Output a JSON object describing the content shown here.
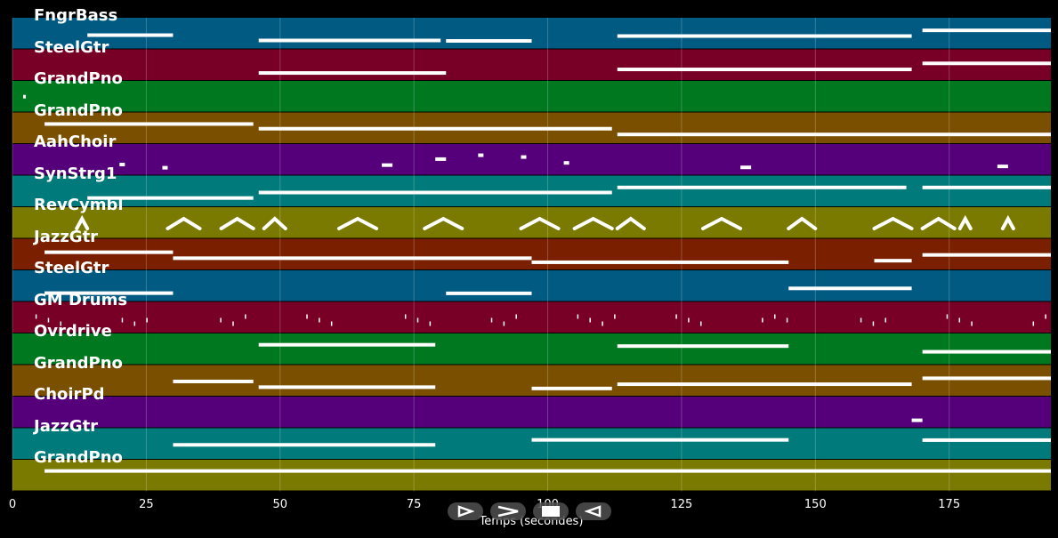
{
  "chart_data": {
    "type": "piano-roll",
    "xlabel": "Temps (secondes)",
    "xlim": [
      0,
      194
    ],
    "xticks": [
      0,
      25,
      50,
      75,
      100,
      125,
      150,
      175
    ],
    "tracks": [
      {
        "name": "FngrBass",
        "color": "#005a82",
        "segments": [
          [
            14,
            30
          ],
          [
            46,
            80
          ],
          [
            81,
            97
          ],
          [
            113,
            168
          ],
          [
            170,
            194
          ]
        ]
      },
      {
        "name": "SteelGtr",
        "color": "#780026",
        "segments": [
          [
            46,
            81
          ],
          [
            113,
            168
          ],
          [
            170,
            194
          ]
        ]
      },
      {
        "name": "GrandPno",
        "color": "#007820",
        "segments": [
          [
            2,
            2.5
          ]
        ]
      },
      {
        "name": "GrandPno",
        "color": "#7a5000",
        "segments": [
          [
            6,
            45
          ],
          [
            46,
            112
          ],
          [
            113,
            194
          ]
        ]
      },
      {
        "name": "AahChoir",
        "color": "#55007a",
        "segments": [
          [
            20,
            21
          ],
          [
            28,
            29
          ],
          [
            69,
            71
          ],
          [
            79,
            81
          ],
          [
            87,
            88
          ],
          [
            95,
            96
          ],
          [
            103,
            104
          ],
          [
            136,
            138
          ],
          [
            184,
            186
          ]
        ]
      },
      {
        "name": "SynStrg1",
        "color": "#007a7a",
        "segments": [
          [
            14,
            45
          ],
          [
            46,
            112
          ],
          [
            113,
            167
          ],
          [
            170,
            194
          ]
        ]
      },
      {
        "name": "RevCymbl",
        "color": "#7a7a00",
        "segments": [
          [
            12,
            14
          ],
          [
            29,
            35
          ],
          [
            39,
            45
          ],
          [
            47,
            51
          ],
          [
            61,
            68
          ],
          [
            77,
            84
          ],
          [
            95,
            102
          ],
          [
            105,
            112
          ],
          [
            113,
            118
          ],
          [
            129,
            136
          ],
          [
            145,
            150
          ],
          [
            161,
            168
          ],
          [
            170,
            176
          ],
          [
            177,
            179
          ],
          [
            185,
            187
          ]
        ]
      },
      {
        "name": "JazzGtr",
        "color": "#7a2000",
        "segments": [
          [
            6,
            30
          ],
          [
            30,
            97
          ],
          [
            97,
            145
          ],
          [
            161,
            168
          ],
          [
            170,
            194
          ]
        ]
      },
      {
        "name": "SteelGtr",
        "color": "#005a82",
        "segments": [
          [
            6,
            30
          ],
          [
            81,
            97
          ],
          [
            145,
            168
          ]
        ]
      },
      {
        "name": "GM Drums",
        "color": "#780026",
        "segments": [
          [
            2,
            194
          ]
        ]
      },
      {
        "name": "Ovrdrive",
        "color": "#007820",
        "segments": [
          [
            46,
            79
          ],
          [
            113,
            145
          ],
          [
            170,
            194
          ]
        ]
      },
      {
        "name": "GrandPno",
        "color": "#7a5000",
        "segments": [
          [
            30,
            45
          ],
          [
            46,
            79
          ],
          [
            97,
            112
          ],
          [
            113,
            168
          ],
          [
            170,
            194
          ]
        ]
      },
      {
        "name": "ChoirPd",
        "color": "#55007a",
        "segments": [
          [
            168,
            170
          ]
        ]
      },
      {
        "name": "JazzGtr",
        "color": "#007a7a",
        "segments": [
          [
            30,
            79
          ],
          [
            97,
            145
          ],
          [
            170,
            194
          ]
        ]
      },
      {
        "name": "GrandPno",
        "color": "#7a7a00",
        "segments": [
          [
            6,
            194
          ]
        ]
      }
    ]
  },
  "controls": [
    {
      "name": "play-forward",
      "icon": "play-outline-icon"
    },
    {
      "name": "fast-forward",
      "icon": "chevron-right-icon"
    },
    {
      "name": "stop",
      "icon": "stop-icon"
    },
    {
      "name": "rewind",
      "icon": "play-reverse-outline-icon"
    }
  ]
}
